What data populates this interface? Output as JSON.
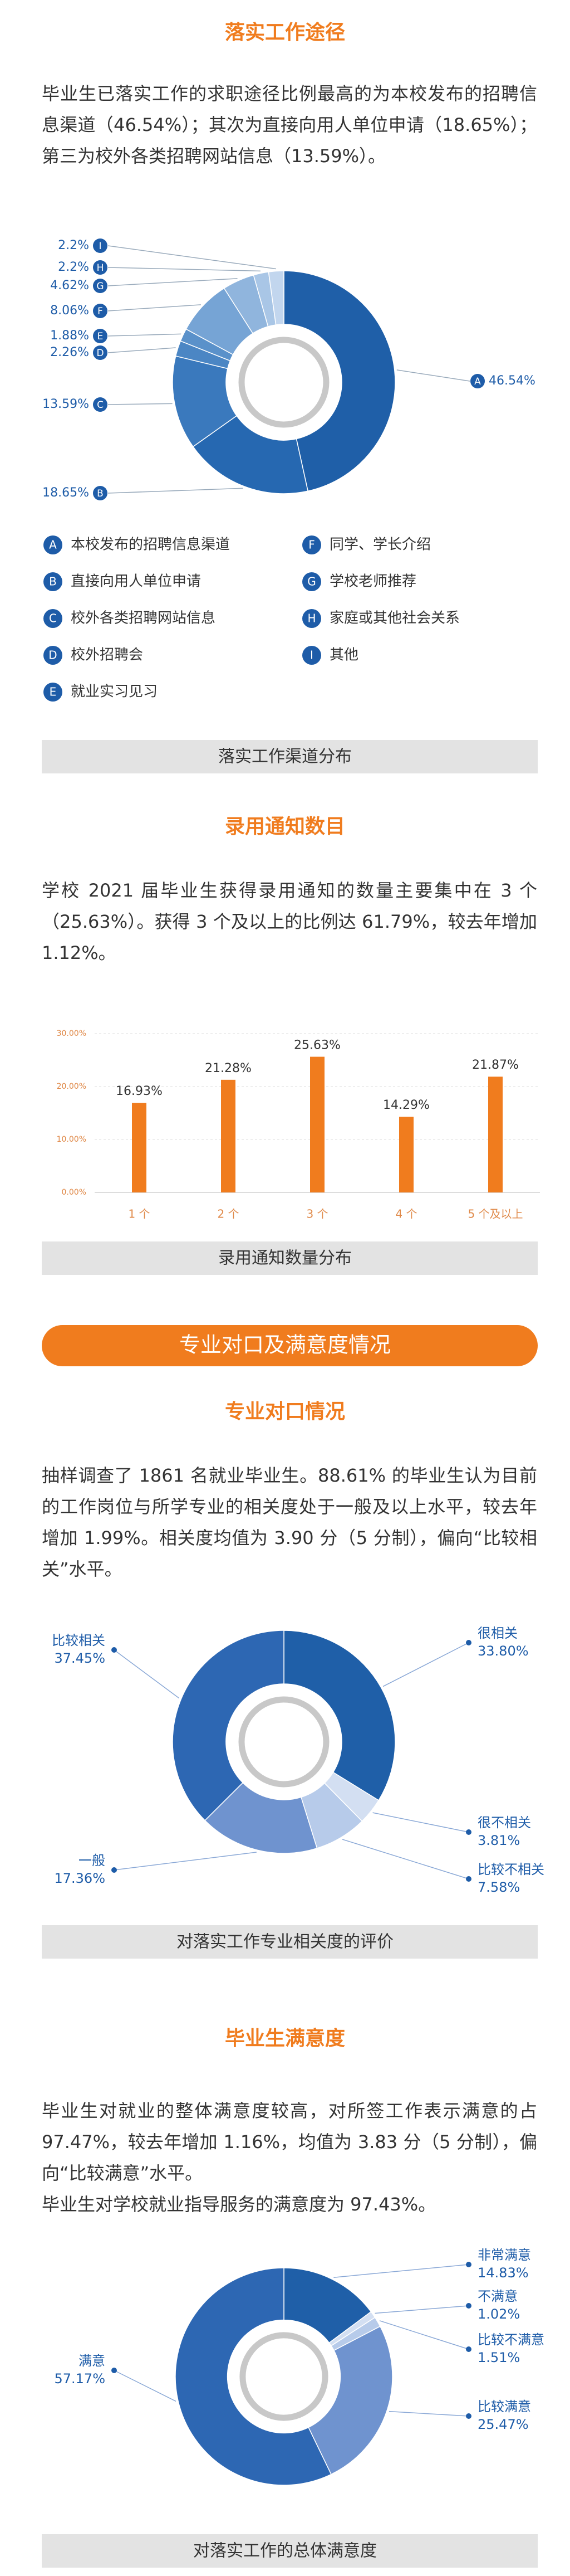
{
  "banner": "专业对口及满意度情况",
  "sections": [
    {
      "heading": "落实工作途径",
      "paragraphs": [
        "毕业生已落实工作的求职途径比例最高的为本校发布的招聘信息渠道（46.54%）；其次为直接向用人单位申请（18.65%）；第三为校外各类招聘网站信息（13.59%）。"
      ]
    },
    {
      "heading": "录用通知数目",
      "paragraphs": [
        "学校 2021 届毕业生获得录用通知的数量主要集中在 3 个（25.63%）。获得 3 个及以上的比例达 61.79%，较去年增加 1.12%。"
      ]
    },
    {
      "heading": "专业对口情况",
      "paragraphs": [
        "抽样调查了 1861 名就业毕业生。88.61% 的毕业生认为目前的工作岗位与所学专业的相关度处于一般及以上水平，较去年增加 1.99%。相关度均值为 3.90 分（5 分制），偏向“比较相关”水平。"
      ]
    },
    {
      "heading": "毕业生满意度",
      "paragraphs": [
        "毕业生对就业的整体满意度较高，对所签工作表示满意的占 97.47%，较去年增加 1.16%，均值为 3.83 分（5 分制），偏向“比较满意”水平。",
        "毕业生对学校就业指导服务的满意度为 97.43%。"
      ]
    }
  ],
  "chart_data": [
    {
      "type": "donut",
      "title": "落实工作渠道分布",
      "markers": [
        "A",
        "B",
        "C",
        "D",
        "E",
        "F",
        "G",
        "H",
        "I"
      ],
      "categories": [
        "本校发布的招聘信息渠道",
        "直接向用人单位申请",
        "校外各类招聘网站信息",
        "校外招聘会",
        "就业实习见习",
        "同学、学长介绍",
        "学校老师推荐",
        "家庭或其他社会关系",
        "其他"
      ],
      "values": [
        46.54,
        18.65,
        13.59,
        2.26,
        1.88,
        8.06,
        4.62,
        2.2,
        2.2
      ],
      "value_labels": [
        "46.54%",
        "18.65%",
        "13.59%",
        "2.26%",
        "1.88%",
        "8.06%",
        "4.62%",
        "2.2%",
        "2.2%"
      ],
      "colors": [
        "#1f5fa8",
        "#2668b1",
        "#3a79bd",
        "#4b86c4",
        "#5a91ca",
        "#76a4d5",
        "#90b5dd",
        "#a9c6e6",
        "#c2d6ee"
      ]
    },
    {
      "type": "bar",
      "title": "录用通知数量分布",
      "categories": [
        "1 个",
        "2 个",
        "3 个",
        "4 个",
        "5 个及以上"
      ],
      "values": [
        16.93,
        21.28,
        25.63,
        14.29,
        21.87
      ],
      "value_labels": [
        "16.93%",
        "21.28%",
        "25.63%",
        "14.29%",
        "21.87%"
      ],
      "color": "#f07c1e",
      "ylim": [
        0,
        30
      ],
      "yticks": [
        {
          "value": 0,
          "label": "0.00%"
        },
        {
          "value": 10,
          "label": "10.00%"
        },
        {
          "value": 20,
          "label": "20.00%"
        },
        {
          "value": 30,
          "label": "30.00%"
        }
      ],
      "grid": true
    },
    {
      "type": "donut",
      "title": "对落实工作专业相关度的评价",
      "categories": [
        "很相关",
        "很不相关",
        "比较不相关",
        "一般",
        "比较相关"
      ],
      "values": [
        33.8,
        3.81,
        7.58,
        17.36,
        37.45
      ],
      "value_labels": [
        "33.80%",
        "3.81%",
        "7.58%",
        "17.36%",
        "37.45%"
      ],
      "colors": [
        "#1f5fa8",
        "#d3dff2",
        "#b7cbea",
        "#6f93cf",
        "#2d67b3"
      ]
    },
    {
      "type": "donut",
      "title": "对落实工作的总体满意度",
      "categories": [
        "非常满意",
        "不满意",
        "比较不满意",
        "比较满意",
        "满意"
      ],
      "values": [
        14.83,
        1.02,
        1.51,
        25.47,
        57.17
      ],
      "value_labels": [
        "14.83%",
        "1.02%",
        "1.51%",
        "25.47%",
        "57.17%"
      ],
      "colors": [
        "#1f5fa8",
        "#d3dff2",
        "#b7cbea",
        "#6f93cf",
        "#2d67b3"
      ]
    }
  ]
}
